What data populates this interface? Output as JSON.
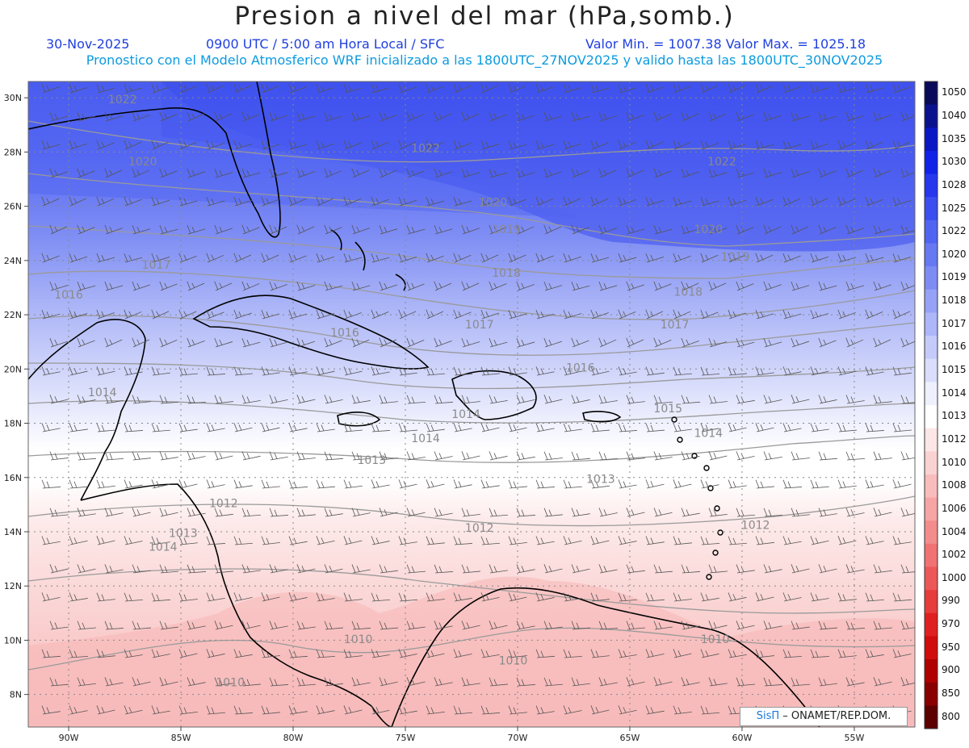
{
  "header": {
    "title": "Presion a nivel del mar (hPa,somb.)",
    "date": "30-Nov-2025",
    "time_info": "0900 UTC / 5:00 am Hora Local / SFC",
    "minmax": "Valor Min. = 1007.38  Valor Max. = 1025.18",
    "model_info": "Pronostico con el Modelo Atmosferico WRF inicializado a las 1800UTC_27NOV2025 y valido hasta las  1800UTC_30NOV2025"
  },
  "map": {
    "lon_range": [
      -91.8,
      -52.3
    ],
    "lat_range": [
      6.8,
      30.6
    ],
    "lat_ticks": [
      {
        "value": 30,
        "label": "30N"
      },
      {
        "value": 28,
        "label": "28N"
      },
      {
        "value": 26,
        "label": "26N"
      },
      {
        "value": 24,
        "label": "24N"
      },
      {
        "value": 22,
        "label": "22N"
      },
      {
        "value": 20,
        "label": "20N"
      },
      {
        "value": 18,
        "label": "18N"
      },
      {
        "value": 16,
        "label": "16N"
      },
      {
        "value": 14,
        "label": "14N"
      },
      {
        "value": 12,
        "label": "12N"
      },
      {
        "value": 10,
        "label": "10N"
      },
      {
        "value": 8,
        "label": "8N"
      }
    ],
    "lon_ticks": [
      {
        "value": -90,
        "label": "90W"
      },
      {
        "value": -85,
        "label": "85W"
      },
      {
        "value": -80,
        "label": "80W"
      },
      {
        "value": -75,
        "label": "75W"
      },
      {
        "value": -70,
        "label": "70W"
      },
      {
        "value": -65,
        "label": "65W"
      },
      {
        "value": -60,
        "label": "60W"
      },
      {
        "value": -55,
        "label": "55W"
      }
    ],
    "isobar_labels": [
      {
        "text": "1022",
        "lon": -87.6,
        "lat": 29.8
      },
      {
        "text": "1022",
        "lon": -74.1,
        "lat": 28.0
      },
      {
        "text": "1022",
        "lon": -60.9,
        "lat": 27.5
      },
      {
        "text": "1020",
        "lon": -86.7,
        "lat": 27.5
      },
      {
        "text": "1020",
        "lon": -71.1,
        "lat": 26.0
      },
      {
        "text": "1020",
        "lon": -61.5,
        "lat": 25.0
      },
      {
        "text": "1019",
        "lon": -70.5,
        "lat": 25.0
      },
      {
        "text": "1019",
        "lon": -60.3,
        "lat": 24.0
      },
      {
        "text": "1018",
        "lon": -70.5,
        "lat": 23.4
      },
      {
        "text": "1018",
        "lon": -62.4,
        "lat": 22.7
      },
      {
        "text": "1017",
        "lon": -86.1,
        "lat": 23.7
      },
      {
        "text": "1017",
        "lon": -71.7,
        "lat": 21.5
      },
      {
        "text": "1017",
        "lon": -63.0,
        "lat": 21.5
      },
      {
        "text": "1016",
        "lon": -90.0,
        "lat": 22.6
      },
      {
        "text": "1016",
        "lon": -77.7,
        "lat": 21.2
      },
      {
        "text": "1016",
        "lon": -67.2,
        "lat": 19.9
      },
      {
        "text": "1015",
        "lon": -63.3,
        "lat": 18.4
      },
      {
        "text": "1014",
        "lon": -88.5,
        "lat": 19.0
      },
      {
        "text": "1014",
        "lon": -72.3,
        "lat": 18.2
      },
      {
        "text": "1014",
        "lon": -74.1,
        "lat": 17.3
      },
      {
        "text": "1014",
        "lon": -61.5,
        "lat": 17.5
      },
      {
        "text": "1013",
        "lon": -76.5,
        "lat": 16.5
      },
      {
        "text": "1013",
        "lon": -66.3,
        "lat": 15.8
      },
      {
        "text": "1013",
        "lon": -84.9,
        "lat": 13.8
      },
      {
        "text": "1012",
        "lon": -83.1,
        "lat": 14.9
      },
      {
        "text": "1012",
        "lon": -71.7,
        "lat": 14.0
      },
      {
        "text": "1012",
        "lon": -59.4,
        "lat": 14.1
      },
      {
        "text": "1014",
        "lon": -85.8,
        "lat": 13.3
      },
      {
        "text": "1010",
        "lon": -77.1,
        "lat": 9.9
      },
      {
        "text": "1010",
        "lon": -70.2,
        "lat": 9.1
      },
      {
        "text": "1010",
        "lon": -61.2,
        "lat": 9.9
      },
      {
        "text": "1010",
        "lon": -82.8,
        "lat": 8.3
      }
    ]
  },
  "colorbar": {
    "levels": [
      "1050",
      "1040",
      "1035",
      "1030",
      "1028",
      "1025",
      "1022",
      "1020",
      "1019",
      "1018",
      "1017",
      "1016",
      "1015",
      "1014",
      "1013",
      "1012",
      "1010",
      "1008",
      "1006",
      "1004",
      "1002",
      "1000",
      "990",
      "970",
      "950",
      "900",
      "850",
      "800"
    ],
    "colors": [
      "#0a0a5a",
      "#0b128f",
      "#0a17c4",
      "#1022e8",
      "#2637ee",
      "#3b4ef0",
      "#5064f2",
      "#6778f3",
      "#7d8cf4",
      "#95a2f6",
      "#acb6f8",
      "#c4cbfa",
      "#dadefb",
      "#eef0fd",
      "#ffffff",
      "#fde6e6",
      "#fbd2d2",
      "#f9bcbc",
      "#f6a4a4",
      "#f38c8c",
      "#f07272",
      "#ec5858",
      "#e63c3c",
      "#e02020",
      "#d00c0c",
      "#b00000",
      "#8a0000",
      "#5c0000"
    ]
  },
  "credit": {
    "brand": "SisΠ",
    "text": "– ONAMET/REP.DOM."
  }
}
